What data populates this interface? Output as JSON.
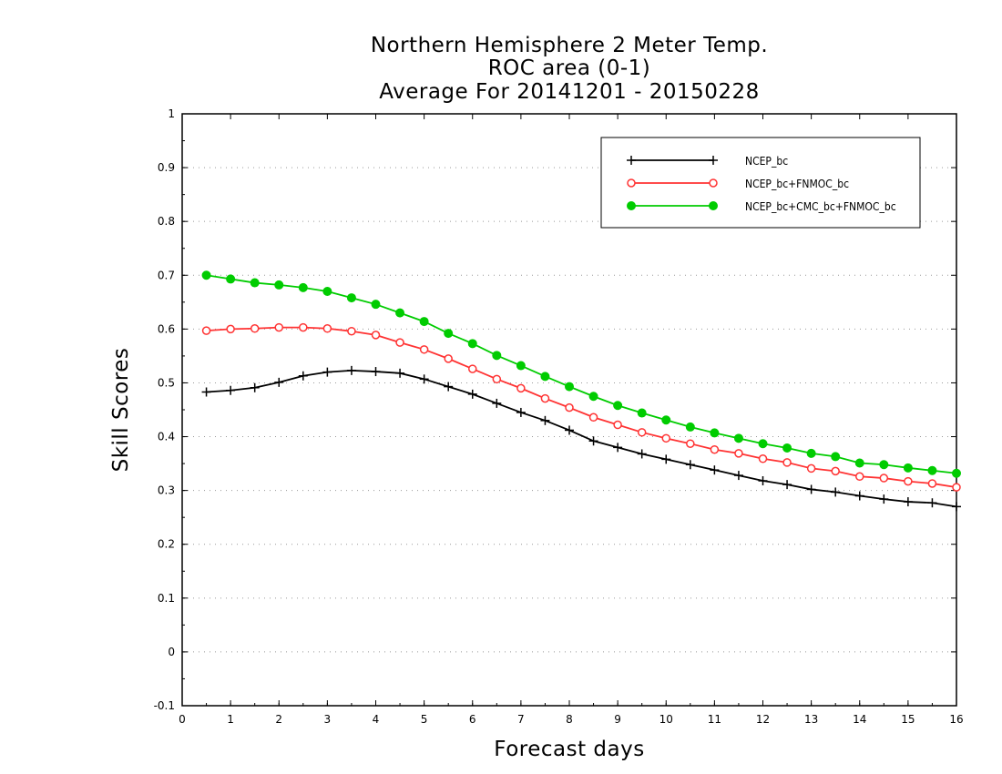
{
  "chart_data": {
    "type": "line",
    "title": [
      "Northern Hemisphere 2 Meter Temp.",
      "ROC area (0-1)",
      "Average For 20141201 - 20150228"
    ],
    "xlabel": "Forecast days",
    "ylabel": "Skill Scores",
    "xlim": [
      0,
      16
    ],
    "ylim": [
      -0.1,
      1
    ],
    "xticks": [
      "0",
      "1",
      "2",
      "3",
      "4",
      "5",
      "6",
      "7",
      "8",
      "9",
      "10",
      "11",
      "12",
      "13",
      "14",
      "15",
      "16"
    ],
    "yticks": [
      "-0.1",
      "0",
      "0.1",
      "0.2",
      "0.3",
      "0.4",
      "0.5",
      "0.6",
      "0.7",
      "0.8",
      "0.9",
      "1"
    ],
    "grid": "horizontal dotted",
    "legend_position": "top-right",
    "x": [
      0.5,
      1,
      1.5,
      2,
      2.5,
      3,
      3.5,
      4,
      4.5,
      5,
      5.5,
      6,
      6.5,
      7,
      7.5,
      8,
      8.5,
      9,
      9.5,
      10,
      10.5,
      11,
      11.5,
      12,
      12.5,
      13,
      13.5,
      14,
      14.5,
      15,
      15.5,
      16
    ],
    "series": [
      {
        "name": "NCEP_bc",
        "color": "#000000",
        "marker": "plus",
        "values": [
          0.483,
          0.486,
          0.491,
          0.501,
          0.513,
          0.52,
          0.523,
          0.521,
          0.518,
          0.507,
          0.493,
          0.479,
          0.462,
          0.445,
          0.43,
          0.412,
          0.392,
          0.38,
          0.368,
          0.358,
          0.348,
          0.338,
          0.328,
          0.318,
          0.311,
          0.302,
          0.297,
          0.29,
          0.284,
          0.279,
          0.277,
          0.27
        ]
      },
      {
        "name": "NCEP_bc+FNMOC_bc",
        "color": "#ff3333",
        "marker": "open-circle",
        "values": [
          0.597,
          0.6,
          0.601,
          0.603,
          0.603,
          0.601,
          0.596,
          0.589,
          0.575,
          0.562,
          0.545,
          0.526,
          0.507,
          0.49,
          0.471,
          0.454,
          0.436,
          0.422,
          0.408,
          0.397,
          0.387,
          0.376,
          0.369,
          0.359,
          0.352,
          0.341,
          0.336,
          0.326,
          0.323,
          0.317,
          0.313,
          0.306
        ]
      },
      {
        "name": "NCEP_bc+CMC_bc+FNMOC_bc",
        "color": "#00cc00",
        "marker": "filled-circle",
        "values": [
          0.7,
          0.693,
          0.686,
          0.682,
          0.677,
          0.67,
          0.658,
          0.646,
          0.63,
          0.614,
          0.592,
          0.573,
          0.551,
          0.532,
          0.512,
          0.493,
          0.475,
          0.458,
          0.444,
          0.431,
          0.418,
          0.407,
          0.397,
          0.387,
          0.379,
          0.369,
          0.363,
          0.351,
          0.348,
          0.342,
          0.337,
          0.332
        ]
      }
    ]
  }
}
